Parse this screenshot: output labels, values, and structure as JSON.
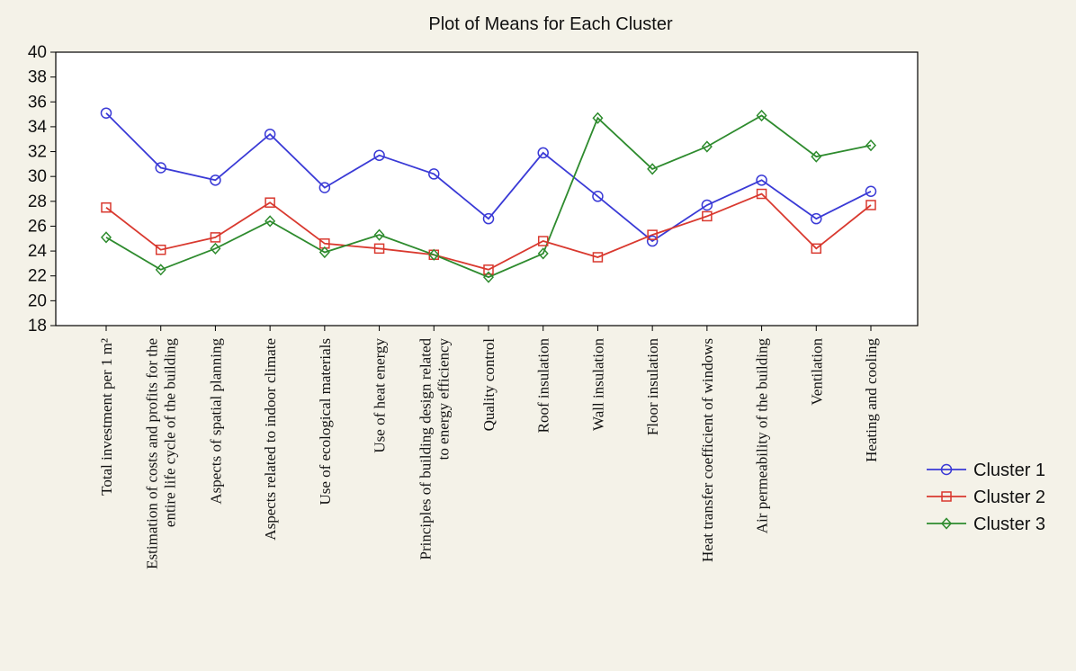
{
  "chart_data": {
    "type": "line",
    "title": "Plot of Means for Each Cluster",
    "ylim": [
      18,
      40
    ],
    "yticks": [
      18,
      20,
      22,
      24,
      26,
      28,
      30,
      32,
      34,
      36,
      38,
      40
    ],
    "grid": false,
    "legend_position": "bottom-right",
    "categories": [
      [
        "Total investment per 1 m²"
      ],
      [
        "Estimation of costs and profits for the",
        "entire life cycle of the building"
      ],
      [
        "Aspects of spatial planning"
      ],
      [
        "Aspects related to indoor climate"
      ],
      [
        "Use of ecological materials"
      ],
      [
        "Use of heat energy"
      ],
      [
        "Principles of building design related",
        "to energy efficiency"
      ],
      [
        "Quality control"
      ],
      [
        "Roof insulation"
      ],
      [
        "Wall insulation"
      ],
      [
        "Floor insulation"
      ],
      [
        "Heat transfer coefficient of windows"
      ],
      [
        "Air permeability of the building"
      ],
      [
        "Ventilation"
      ],
      [
        "Heating and cooling"
      ]
    ],
    "series": [
      {
        "name": "Cluster  1",
        "color": "#3a3ad6",
        "marker": "circle",
        "values": [
          35.1,
          30.7,
          29.7,
          33.4,
          29.1,
          31.7,
          30.2,
          26.6,
          31.9,
          28.4,
          24.8,
          27.7,
          29.7,
          26.6,
          28.8
        ]
      },
      {
        "name": "Cluster  2",
        "color": "#d9392f",
        "marker": "square",
        "values": [
          27.5,
          24.1,
          25.1,
          27.9,
          24.6,
          24.2,
          23.7,
          22.5,
          24.8,
          23.5,
          25.3,
          26.8,
          28.6,
          24.2,
          27.7
        ]
      },
      {
        "name": "Cluster  3",
        "color": "#2e8b2e",
        "marker": "diamond",
        "values": [
          25.1,
          22.5,
          24.2,
          26.4,
          23.9,
          25.3,
          23.7,
          21.9,
          23.8,
          34.7,
          30.6,
          32.4,
          34.9,
          31.6,
          32.5
        ]
      }
    ]
  }
}
